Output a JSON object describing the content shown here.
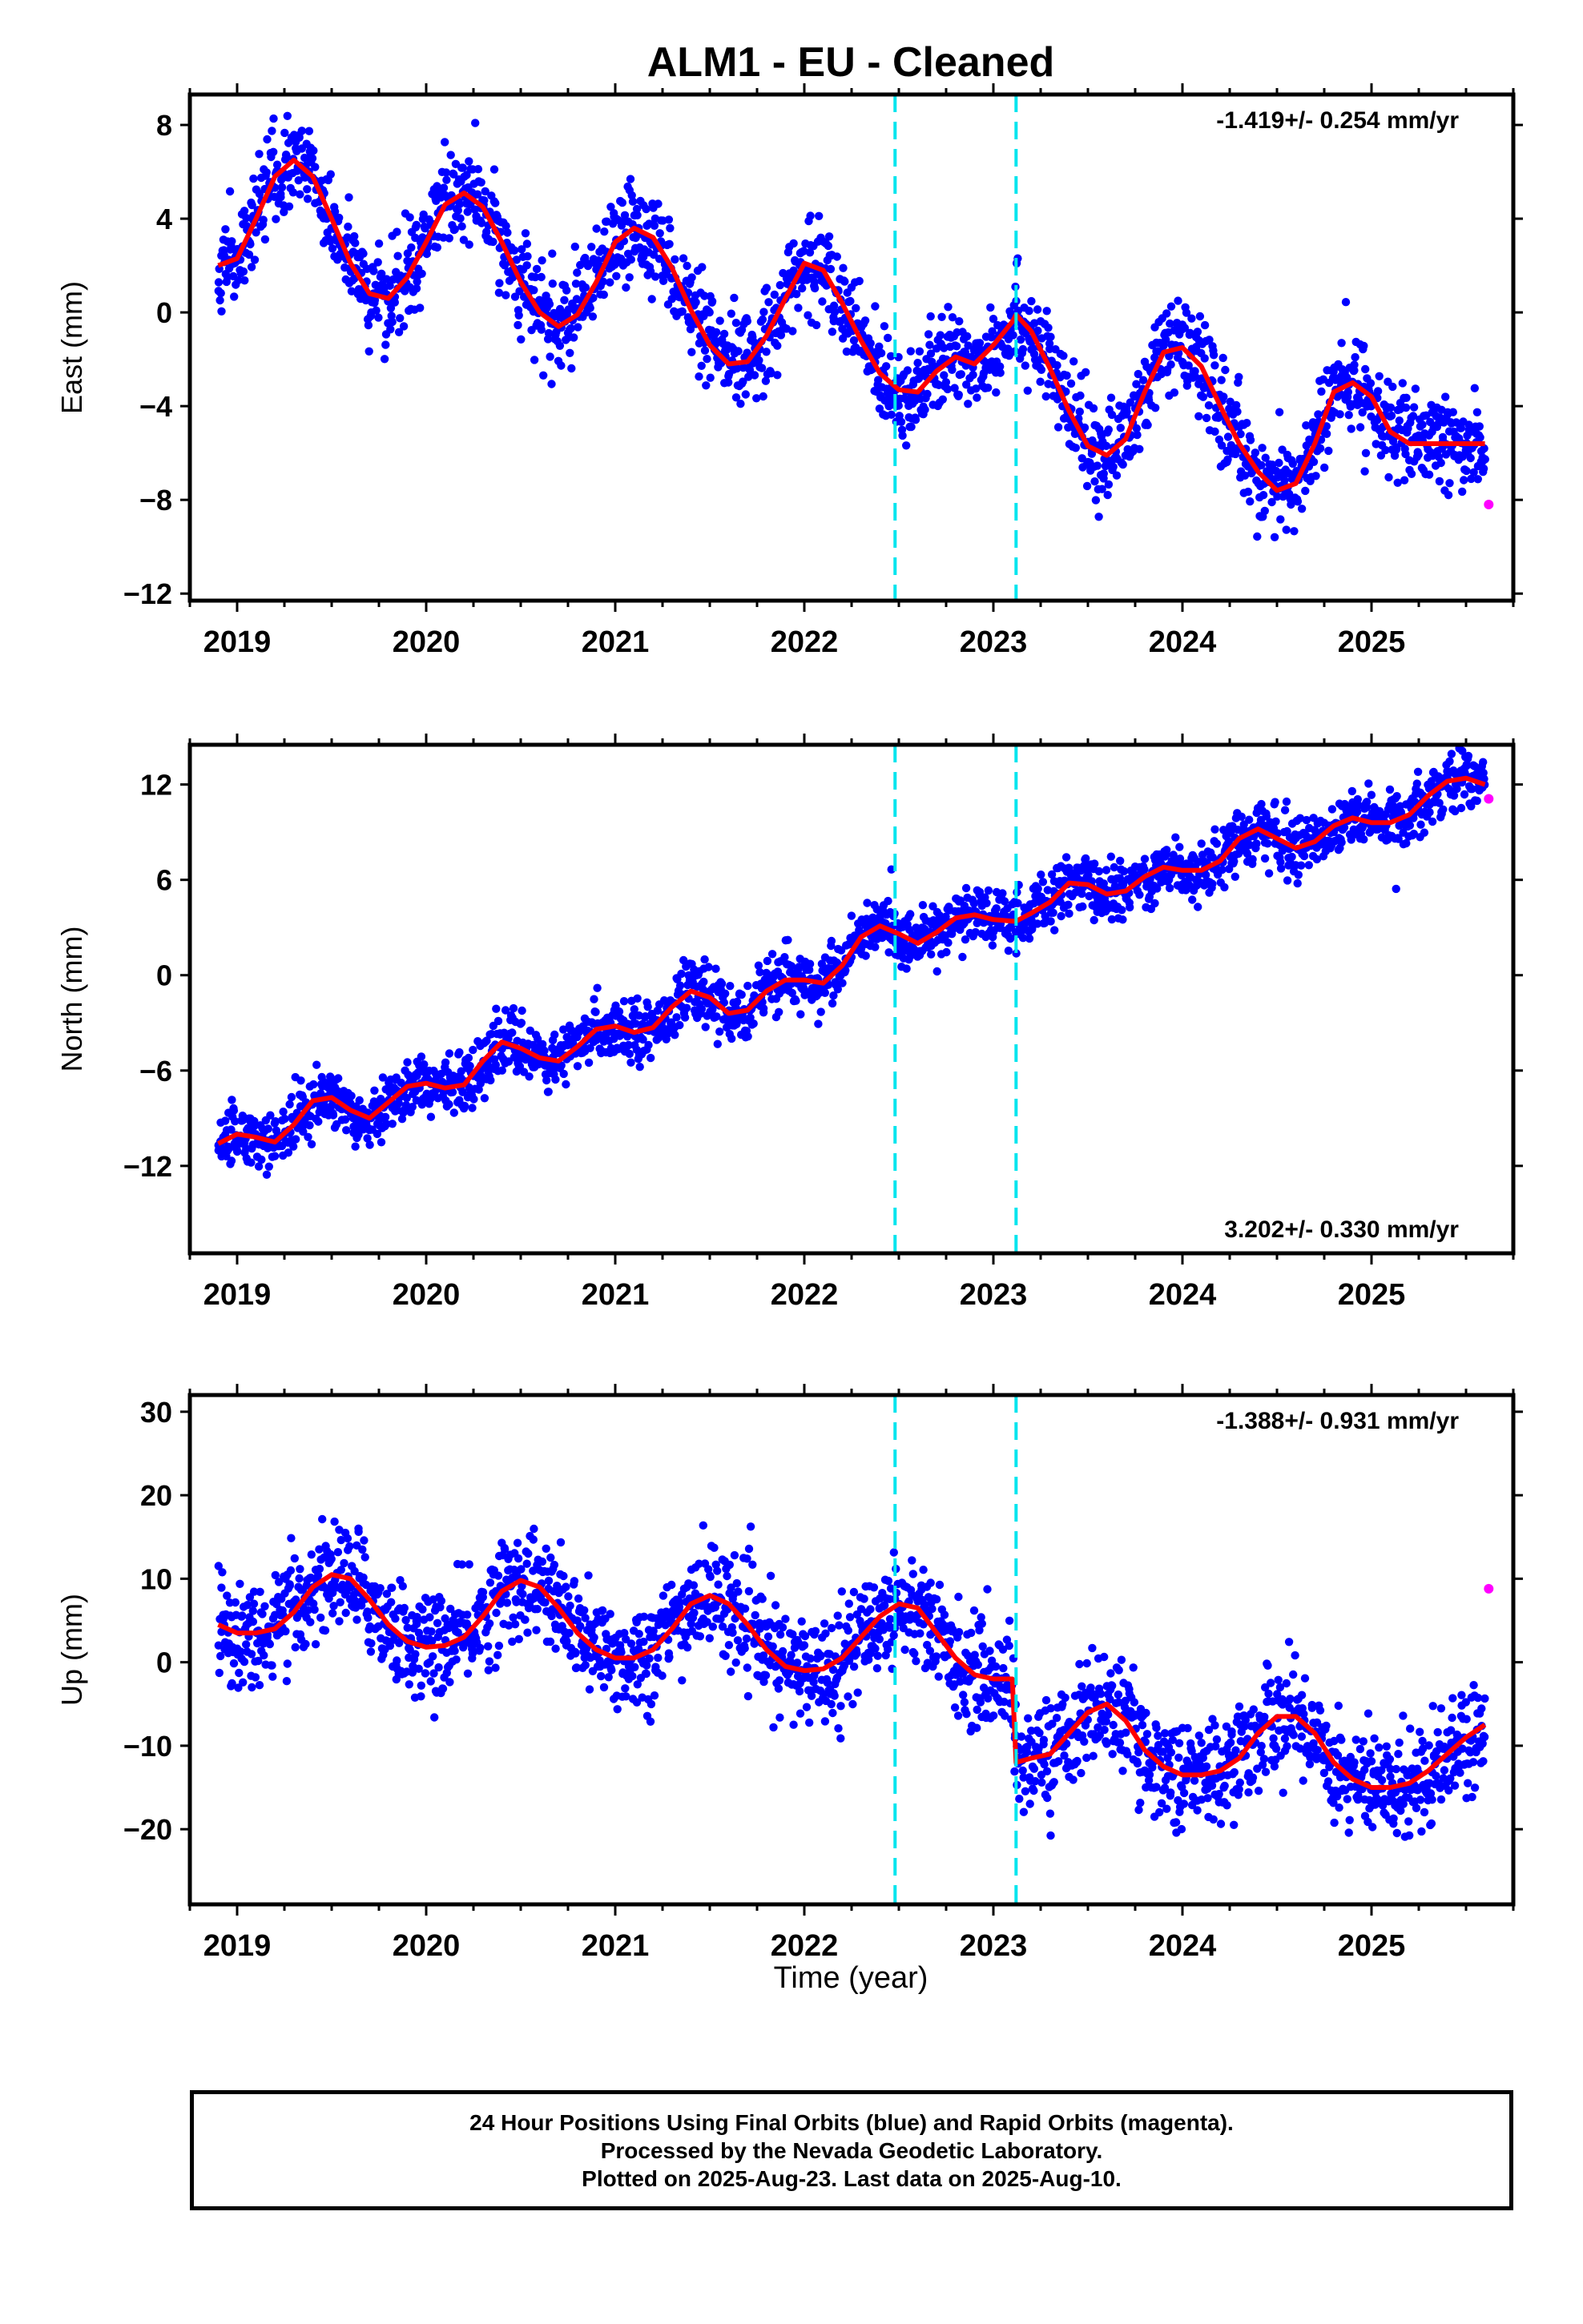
{
  "title": "ALM1  - EU - Cleaned",
  "xlabel": "Time (year)",
  "colors": {
    "final_orbits": "#0000ff",
    "rapid_orbits": "#ff00ff",
    "model": "#ff0000",
    "equipment_change": "#00e5ee"
  },
  "footer": {
    "line1": "24 Hour Positions Using Final Orbits (blue) and Rapid Orbits (magenta).",
    "line2": "Processed by the Nevada Geodetic Laboratory.",
    "line3": "Plotted on 2025-Aug-23. Last data on 2025-Aug-10."
  },
  "chart_data": [
    {
      "type": "scatter",
      "component": "East",
      "ylabel": "East (mm)",
      "rate_label": "-1.419+/- 0.254 mm/yr",
      "rate_position": "top-right",
      "xlim": [
        2018.75,
        2025.75
      ],
      "ylim": [
        -12.3,
        9.3
      ],
      "x_ticks": [
        2019,
        2020,
        2021,
        2022,
        2023,
        2024,
        2025
      ],
      "y_ticks": [
        -12,
        -8,
        -4,
        0,
        4,
        8
      ],
      "grid": false,
      "equipment_change_years": [
        2022.48,
        2023.12
      ],
      "model_curve": {
        "x": [
          2018.9,
          2019.0,
          2019.1,
          2019.2,
          2019.3,
          2019.4,
          2019.5,
          2019.6,
          2019.7,
          2019.8,
          2019.9,
          2020.0,
          2020.1,
          2020.2,
          2020.3,
          2020.4,
          2020.5,
          2020.6,
          2020.7,
          2020.8,
          2020.9,
          2021.0,
          2021.1,
          2021.2,
          2021.3,
          2021.4,
          2021.5,
          2021.6,
          2021.7,
          2021.8,
          2021.9,
          2022.0,
          2022.1,
          2022.2,
          2022.3,
          2022.4,
          2022.5,
          2022.6,
          2022.7,
          2022.8,
          2022.9,
          2023.0,
          2023.1,
          2023.12,
          2023.2,
          2023.3,
          2023.4,
          2023.5,
          2023.6,
          2023.7,
          2023.8,
          2023.9,
          2024.0,
          2024.1,
          2024.2,
          2024.3,
          2024.4,
          2024.5,
          2024.6,
          2024.7,
          2024.8,
          2024.9,
          2025.0,
          2025.1,
          2025.2,
          2025.3,
          2025.4,
          2025.5,
          2025.6
        ],
        "y": [
          2.0,
          2.3,
          4.0,
          5.8,
          6.5,
          5.8,
          4.0,
          2.1,
          0.8,
          0.6,
          1.5,
          3.0,
          4.6,
          5.1,
          4.5,
          3.0,
          1.3,
          0.0,
          -0.6,
          -0.1,
          1.3,
          3.0,
          3.6,
          3.2,
          1.9,
          0.1,
          -1.4,
          -2.2,
          -2.1,
          -1.0,
          0.6,
          2.1,
          1.8,
          0.4,
          -1.2,
          -2.6,
          -3.3,
          -3.4,
          -2.5,
          -1.9,
          -2.2,
          -1.4,
          -0.4,
          -0.1,
          -0.8,
          -2.4,
          -4.2,
          -5.7,
          -6.1,
          -5.4,
          -3.4,
          -1.7,
          -1.5,
          -2.3,
          -4.0,
          -5.6,
          -6.8,
          -7.6,
          -7.3,
          -5.6,
          -3.4,
          -3.0,
          -3.6,
          -5.1,
          -5.6,
          -5.6,
          -5.6,
          -5.6,
          -5.6
        ]
      },
      "rapid_points": [
        {
          "x": 2025.62,
          "y": -8.2
        }
      ]
    },
    {
      "type": "scatter",
      "component": "North",
      "ylabel": "North (mm)",
      "rate_label": "3.202+/- 0.330 mm/yr",
      "rate_position": "bottom-right",
      "xlim": [
        2018.75,
        2025.75
      ],
      "ylim": [
        -17.5,
        14.5
      ],
      "x_ticks": [
        2019,
        2020,
        2021,
        2022,
        2023,
        2024,
        2025
      ],
      "y_ticks": [
        -12,
        -6,
        0,
        6,
        12
      ],
      "grid": false,
      "equipment_change_years": [
        2022.48,
        2023.12
      ],
      "model_curve": {
        "x": [
          2018.9,
          2019.0,
          2019.1,
          2019.2,
          2019.3,
          2019.4,
          2019.5,
          2019.6,
          2019.7,
          2019.8,
          2019.9,
          2020.0,
          2020.1,
          2020.2,
          2020.3,
          2020.4,
          2020.5,
          2020.6,
          2020.7,
          2020.8,
          2020.9,
          2021.0,
          2021.1,
          2021.2,
          2021.3,
          2021.4,
          2021.5,
          2021.6,
          2021.7,
          2021.8,
          2021.9,
          2022.0,
          2022.1,
          2022.2,
          2022.3,
          2022.4,
          2022.5,
          2022.6,
          2022.7,
          2022.8,
          2022.9,
          2023.0,
          2023.1,
          2023.12,
          2023.2,
          2023.3,
          2023.4,
          2023.5,
          2023.6,
          2023.7,
          2023.8,
          2023.9,
          2024.0,
          2024.1,
          2024.2,
          2024.3,
          2024.4,
          2024.5,
          2024.6,
          2024.7,
          2024.8,
          2024.9,
          2025.0,
          2025.1,
          2025.2,
          2025.3,
          2025.4,
          2025.5,
          2025.6
        ],
        "y": [
          -10.6,
          -10.0,
          -10.2,
          -10.5,
          -9.4,
          -7.9,
          -7.7,
          -8.5,
          -9.0,
          -8.0,
          -7.0,
          -6.8,
          -7.1,
          -6.9,
          -5.4,
          -4.2,
          -4.6,
          -5.2,
          -5.4,
          -4.5,
          -3.4,
          -3.2,
          -3.6,
          -3.3,
          -2.0,
          -1.0,
          -1.4,
          -2.4,
          -2.2,
          -1.0,
          -0.3,
          -0.3,
          -0.5,
          0.6,
          2.4,
          3.1,
          2.6,
          2.0,
          2.7,
          3.6,
          3.8,
          3.5,
          3.4,
          3.4,
          3.9,
          4.6,
          5.8,
          5.7,
          5.1,
          5.3,
          6.2,
          6.8,
          6.6,
          6.6,
          7.2,
          8.6,
          9.2,
          8.6,
          8.0,
          8.4,
          9.4,
          9.9,
          9.6,
          9.6,
          10.1,
          11.3,
          12.2,
          12.4,
          12.0
        ]
      },
      "rapid_points": [
        {
          "x": 2025.62,
          "y": 11.1
        }
      ]
    },
    {
      "type": "scatter",
      "component": "Up",
      "ylabel": "Up (mm)",
      "rate_label": "-1.388+/- 0.931 mm/yr",
      "rate_position": "top-right",
      "xlim": [
        2018.75,
        2025.75
      ],
      "ylim": [
        -29,
        32
      ],
      "x_ticks": [
        2019,
        2020,
        2021,
        2022,
        2023,
        2024,
        2025
      ],
      "y_ticks": [
        -20,
        -10,
        0,
        10,
        20,
        30
      ],
      "grid": false,
      "equipment_change_years": [
        2022.48,
        2023.12
      ],
      "model_curve": {
        "x": [
          2018.9,
          2019.0,
          2019.1,
          2019.2,
          2019.3,
          2019.4,
          2019.5,
          2019.6,
          2019.7,
          2019.8,
          2019.9,
          2020.0,
          2020.1,
          2020.2,
          2020.3,
          2020.4,
          2020.5,
          2020.6,
          2020.7,
          2020.8,
          2020.9,
          2021.0,
          2021.1,
          2021.2,
          2021.3,
          2021.4,
          2021.5,
          2021.6,
          2021.7,
          2021.8,
          2021.9,
          2022.0,
          2022.1,
          2022.2,
          2022.3,
          2022.4,
          2022.5,
          2022.6,
          2022.7,
          2022.8,
          2022.9,
          2023.0,
          2023.1,
          2023.12,
          2023.2,
          2023.3,
          2023.4,
          2023.5,
          2023.6,
          2023.7,
          2023.8,
          2023.9,
          2024.0,
          2024.1,
          2024.2,
          2024.3,
          2024.4,
          2024.5,
          2024.6,
          2024.7,
          2024.8,
          2024.9,
          2025.0,
          2025.1,
          2025.2,
          2025.3,
          2025.4,
          2025.5,
          2025.6
        ],
        "y": [
          4.5,
          3.5,
          3.5,
          4.0,
          6.0,
          9.0,
          10.5,
          10.0,
          7.5,
          4.5,
          2.5,
          1.8,
          2.0,
          3.0,
          5.5,
          8.5,
          9.8,
          9.0,
          6.5,
          3.5,
          1.5,
          0.5,
          0.5,
          1.5,
          4.0,
          7.0,
          8.0,
          7.0,
          4.5,
          1.5,
          -0.5,
          -1.0,
          -0.8,
          0.5,
          3.0,
          5.5,
          7.0,
          6.5,
          3.5,
          0.5,
          -1.5,
          -2.0,
          -2.0,
          -12.0,
          -11.5,
          -11.0,
          -8.5,
          -6.0,
          -5.0,
          -7.0,
          -10.5,
          -12.5,
          -13.5,
          -13.5,
          -13.0,
          -11.5,
          -8.5,
          -6.5,
          -6.5,
          -8.5,
          -12.0,
          -14.0,
          -15.0,
          -15.0,
          -14.5,
          -13.0,
          -11.0,
          -9.0,
          -7.5
        ]
      },
      "rapid_points": [
        {
          "x": 2025.62,
          "y": 8.8
        }
      ]
    }
  ]
}
